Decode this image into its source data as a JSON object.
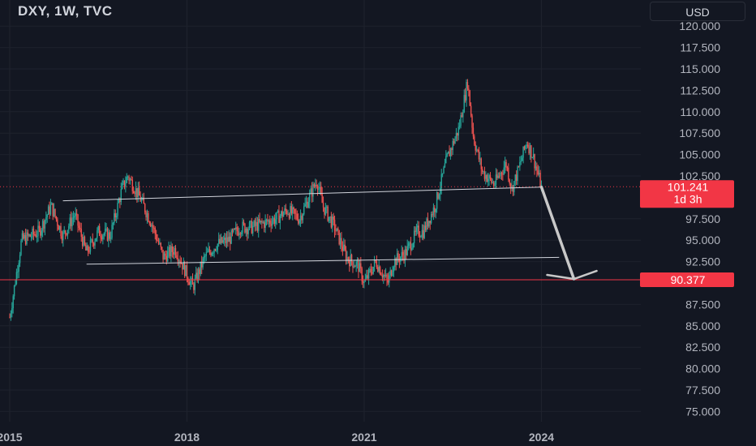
{
  "header": {
    "symbol_title": "DXY, 1W, TVC",
    "currency_button": "USD"
  },
  "chart_data": {
    "type": "candlestick",
    "title": "DXY, 1W, TVC",
    "ylim": [
      73.0,
      122.0
    ],
    "y_ticks": [
      "120.000",
      "117.500",
      "115.000",
      "112.500",
      "110.000",
      "107.500",
      "105.000",
      "102.500",
      "97.500",
      "95.000",
      "92.500",
      "87.500",
      "85.000",
      "82.500",
      "80.000",
      "77.500",
      "75.000"
    ],
    "x_ticks": [
      "2015",
      "2018",
      "2021",
      "2024"
    ],
    "price_path": [
      [
        2015.0,
        86.0
      ],
      [
        2015.2,
        95.0
      ],
      [
        2015.5,
        96.0
      ],
      [
        2015.7,
        99.0
      ],
      [
        2015.9,
        95.5
      ],
      [
        2016.1,
        98.0
      ],
      [
        2016.3,
        93.5
      ],
      [
        2016.5,
        96.0
      ],
      [
        2016.7,
        95.5
      ],
      [
        2016.9,
        101.0
      ],
      [
        2017.0,
        102.5
      ],
      [
        2017.2,
        100.0
      ],
      [
        2017.4,
        97.0
      ],
      [
        2017.6,
        93.0
      ],
      [
        2017.8,
        94.0
      ],
      [
        2018.0,
        91.0
      ],
      [
        2018.1,
        89.5
      ],
      [
        2018.3,
        93.0
      ],
      [
        2018.5,
        94.5
      ],
      [
        2018.7,
        95.0
      ],
      [
        2018.9,
        96.5
      ],
      [
        2019.1,
        96.5
      ],
      [
        2019.3,
        97.0
      ],
      [
        2019.5,
        97.5
      ],
      [
        2019.7,
        98.5
      ],
      [
        2019.9,
        97.5
      ],
      [
        2020.2,
        102.0
      ],
      [
        2020.3,
        99.0
      ],
      [
        2020.5,
        96.5
      ],
      [
        2020.7,
        93.0
      ],
      [
        2020.9,
        92.0
      ],
      [
        2021.0,
        90.0
      ],
      [
        2021.2,
        92.5
      ],
      [
        2021.4,
        90.0
      ],
      [
        2021.5,
        92.5
      ],
      [
        2021.7,
        93.5
      ],
      [
        2021.9,
        96.0
      ],
      [
        2022.0,
        96.0
      ],
      [
        2022.2,
        99.0
      ],
      [
        2022.4,
        104.5
      ],
      [
        2022.6,
        108.0
      ],
      [
        2022.75,
        113.5
      ],
      [
        2022.85,
        107.0
      ],
      [
        2023.0,
        103.0
      ],
      [
        2023.2,
        101.5
      ],
      [
        2023.4,
        104.0
      ],
      [
        2023.5,
        101.0
      ],
      [
        2023.6,
        103.0
      ],
      [
        2023.75,
        106.5
      ],
      [
        2023.85,
        105.0
      ],
      [
        2024.0,
        101.2
      ]
    ],
    "annotations": {
      "current_price": "101.241",
      "countdown": "1d 3h",
      "target_price": "90.377",
      "current_price_value": 101.241,
      "target_price_value": 90.377
    },
    "colors": {
      "up": "#26a69a",
      "down": "#ef5350",
      "background": "#131722",
      "price_label": "#f23645",
      "drawing": "#d1d4dc",
      "arrow": "#c8c8c8"
    }
  }
}
